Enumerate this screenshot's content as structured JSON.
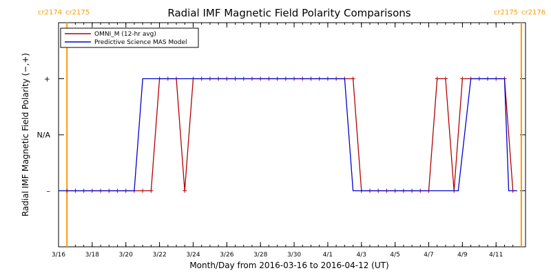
{
  "chart_data": {
    "type": "line",
    "title": "Radial IMF Magnetic Field Polarity Comparisons",
    "xlabel": "Month/Day from 2016-03-16 to 2016-04-12 (UT)",
    "ylabel": "Radial IMF Magnetic Field Polarity (−,+)",
    "x_unit": "date (UT)",
    "xlim": [
      "2016-03-16T00:00",
      "2016-04-12T18:00"
    ],
    "ylim": [
      -2,
      2
    ],
    "x_ticks": [
      "3/16",
      "3/18",
      "3/20",
      "3/22",
      "3/24",
      "3/26",
      "3/28",
      "3/30",
      "4/1",
      "4/3",
      "4/5",
      "4/7",
      "4/9",
      "4/11"
    ],
    "x_tick_dates": [
      "2016-03-16",
      "2016-03-18",
      "2016-03-20",
      "2016-03-22",
      "2016-03-24",
      "2016-03-26",
      "2016-03-28",
      "2016-03-30",
      "2016-04-01",
      "2016-04-03",
      "2016-04-05",
      "2016-04-07",
      "2016-04-09",
      "2016-04-11"
    ],
    "y_ticks": [
      {
        "value": 1,
        "label": "+"
      },
      {
        "value": 0,
        "label": "N/A"
      },
      {
        "value": -1,
        "label": "–"
      }
    ],
    "rotation_markers": [
      {
        "date": "2016-03-16T12:00",
        "label_left": "cr2174",
        "label_right": "cr2175"
      },
      {
        "date": "2016-04-12T12:00",
        "label_left": "cr2175",
        "label_right": "cr2176"
      }
    ],
    "legend_position": "top-left",
    "series": [
      {
        "name": "OMNI_M (12-hr avg)",
        "color": "#b00000",
        "markers": true,
        "points": [
          [
            "2016-03-16T12:00",
            -1
          ],
          [
            "2016-03-17T00:00",
            -1
          ],
          [
            "2016-03-17T12:00",
            -1
          ],
          [
            "2016-03-18T00:00",
            -1
          ],
          [
            "2016-03-18T12:00",
            -1
          ],
          [
            "2016-03-19T00:00",
            -1
          ],
          [
            "2016-03-19T12:00",
            -1
          ],
          [
            "2016-03-20T00:00",
            -1
          ],
          [
            "2016-03-20T12:00",
            -1
          ],
          [
            "2016-03-21T00:00",
            -1
          ],
          [
            "2016-03-21T12:00",
            -1
          ],
          [
            "2016-03-22T00:00",
            1
          ],
          [
            "2016-03-22T12:00",
            1
          ],
          [
            "2016-03-23T00:00",
            1
          ],
          [
            "2016-03-23T12:00",
            -1
          ],
          [
            "2016-03-24T00:00",
            1
          ],
          [
            "2016-03-24T12:00",
            1
          ],
          [
            "2016-03-25T00:00",
            1
          ],
          [
            "2016-03-25T12:00",
            1
          ],
          [
            "2016-03-26T00:00",
            1
          ],
          [
            "2016-03-26T12:00",
            1
          ],
          [
            "2016-03-27T00:00",
            1
          ],
          [
            "2016-03-27T12:00",
            1
          ],
          [
            "2016-03-28T00:00",
            1
          ],
          [
            "2016-03-28T12:00",
            1
          ],
          [
            "2016-03-29T00:00",
            1
          ],
          [
            "2016-03-29T12:00",
            1
          ],
          [
            "2016-03-30T00:00",
            1
          ],
          [
            "2016-03-30T12:00",
            1
          ],
          [
            "2016-03-31T00:00",
            1
          ],
          [
            "2016-03-31T12:00",
            1
          ],
          [
            "2016-04-01T00:00",
            1
          ],
          [
            "2016-04-01T12:00",
            1
          ],
          [
            "2016-04-02T00:00",
            1
          ],
          [
            "2016-04-02T12:00",
            1
          ],
          [
            "2016-04-03T00:00",
            -1
          ],
          [
            "2016-04-03T12:00",
            -1
          ],
          [
            "2016-04-04T00:00",
            -1
          ],
          [
            "2016-04-04T12:00",
            -1
          ],
          [
            "2016-04-05T00:00",
            -1
          ],
          [
            "2016-04-05T12:00",
            -1
          ],
          [
            "2016-04-06T00:00",
            -1
          ],
          [
            "2016-04-06T12:00",
            -1
          ],
          [
            "2016-04-07T00:00",
            -1
          ],
          [
            "2016-04-07T12:00",
            1
          ],
          [
            "2016-04-08T00:00",
            1
          ],
          [
            "2016-04-08T12:00",
            -1
          ],
          [
            "2016-04-09T00:00",
            1
          ],
          [
            "2016-04-09T12:00",
            1
          ],
          [
            "2016-04-10T00:00",
            1
          ],
          [
            "2016-04-10T12:00",
            1
          ],
          [
            "2016-04-11T00:00",
            1
          ],
          [
            "2016-04-11T12:00",
            1
          ],
          [
            "2016-04-12T00:00",
            -1
          ]
        ]
      },
      {
        "name": "Predictive Science MAS Model",
        "color": "#0000cc",
        "markers": false,
        "points": [
          [
            "2016-03-16T00:00",
            -1
          ],
          [
            "2016-03-20T12:00",
            -1
          ],
          [
            "2016-03-21T00:00",
            1
          ],
          [
            "2016-04-02T00:00",
            1
          ],
          [
            "2016-04-02T12:00",
            -1
          ],
          [
            "2016-04-08T18:00",
            -1
          ],
          [
            "2016-04-09T12:00",
            1
          ],
          [
            "2016-04-11T12:00",
            1
          ],
          [
            "2016-04-11T18:00",
            -1
          ],
          [
            "2016-04-12T06:00",
            -1
          ]
        ]
      }
    ]
  }
}
